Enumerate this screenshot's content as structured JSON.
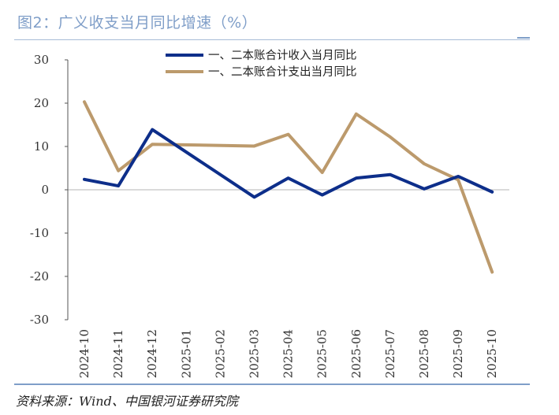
{
  "figure": {
    "title": "图2：广义收支当月同比增速（%）",
    "source": "资料来源：Wind、中国银河证券研究院"
  },
  "colors": {
    "income": "#0d2e8a",
    "expenditure": "#bc9a6c",
    "title": "#7f9ec8",
    "axis": "#555555"
  },
  "chart_data": {
    "type": "line",
    "title": "广义收支当月同比增速（%）",
    "xlabel": "",
    "ylabel": "",
    "ylim": [
      -30,
      30
    ],
    "yticks": [
      "30",
      "20",
      "10",
      "0",
      "-10",
      "-20",
      "-30"
    ],
    "categories": [
      "2024-10",
      "2024-11",
      "2024-12",
      "2025-01",
      "2025-02",
      "2025-03",
      "2025-04",
      "2025-05",
      "2025-06",
      "2025-07",
      "2025-08",
      "2025-09",
      "2025-10"
    ],
    "legend_position": "top",
    "series": [
      {
        "name": "一、二本账合计收入当月同比",
        "color_key": "income",
        "values": [
          2.4,
          0.9,
          13.9,
          null,
          null,
          -1.7,
          2.7,
          -1.2,
          2.7,
          3.5,
          0.2,
          3.1,
          -0.5
        ]
      },
      {
        "name": "一、二本账合计支出当月同比",
        "color_key": "expenditure",
        "values": [
          20.3,
          4.4,
          10.5,
          null,
          null,
          10.1,
          12.8,
          4.0,
          17.5,
          12.2,
          6.0,
          2.3,
          -19.0
        ]
      }
    ]
  }
}
